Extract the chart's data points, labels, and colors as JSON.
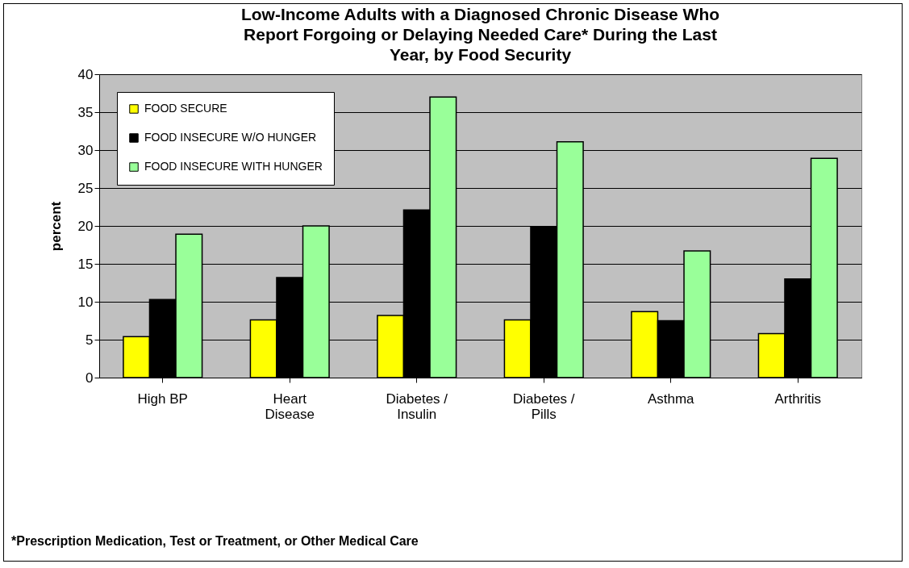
{
  "chart_data": {
    "type": "bar",
    "title": "Low-Income Adults with a Diagnosed Chronic Disease Who Report Forgoing or Delaying Needed Care* During the Last Year, by Food Security",
    "ylabel": "percent",
    "categories": [
      "High BP",
      "Heart Disease",
      "Diabetes / Insulin",
      "Diabetes / Pills",
      "Asthma",
      "Arthritis"
    ],
    "series": [
      {
        "name": "FOOD SECURE",
        "color": "#ffff00",
        "values": [
          5.4,
          7.6,
          8.2,
          7.6,
          8.7,
          5.8
        ]
      },
      {
        "name": "FOOD INSECURE W/O HUNGER",
        "color": "#000000",
        "values": [
          10.3,
          13.2,
          22.1,
          19.9,
          7.5,
          13.0
        ]
      },
      {
        "name": "FOOD INSECURE WITH HUNGER",
        "color": "#99ff99",
        "values": [
          18.9,
          20.0,
          37.0,
          31.1,
          16.7,
          28.9
        ]
      }
    ],
    "ylim": [
      0,
      40
    ],
    "yticks": [
      0,
      5,
      10,
      15,
      20,
      25,
      30,
      35,
      40
    ],
    "grid": "y",
    "legend": "top left",
    "annotations": [
      "*Prescription Medication, Test or Treatment, or Other Medical Care"
    ]
  }
}
